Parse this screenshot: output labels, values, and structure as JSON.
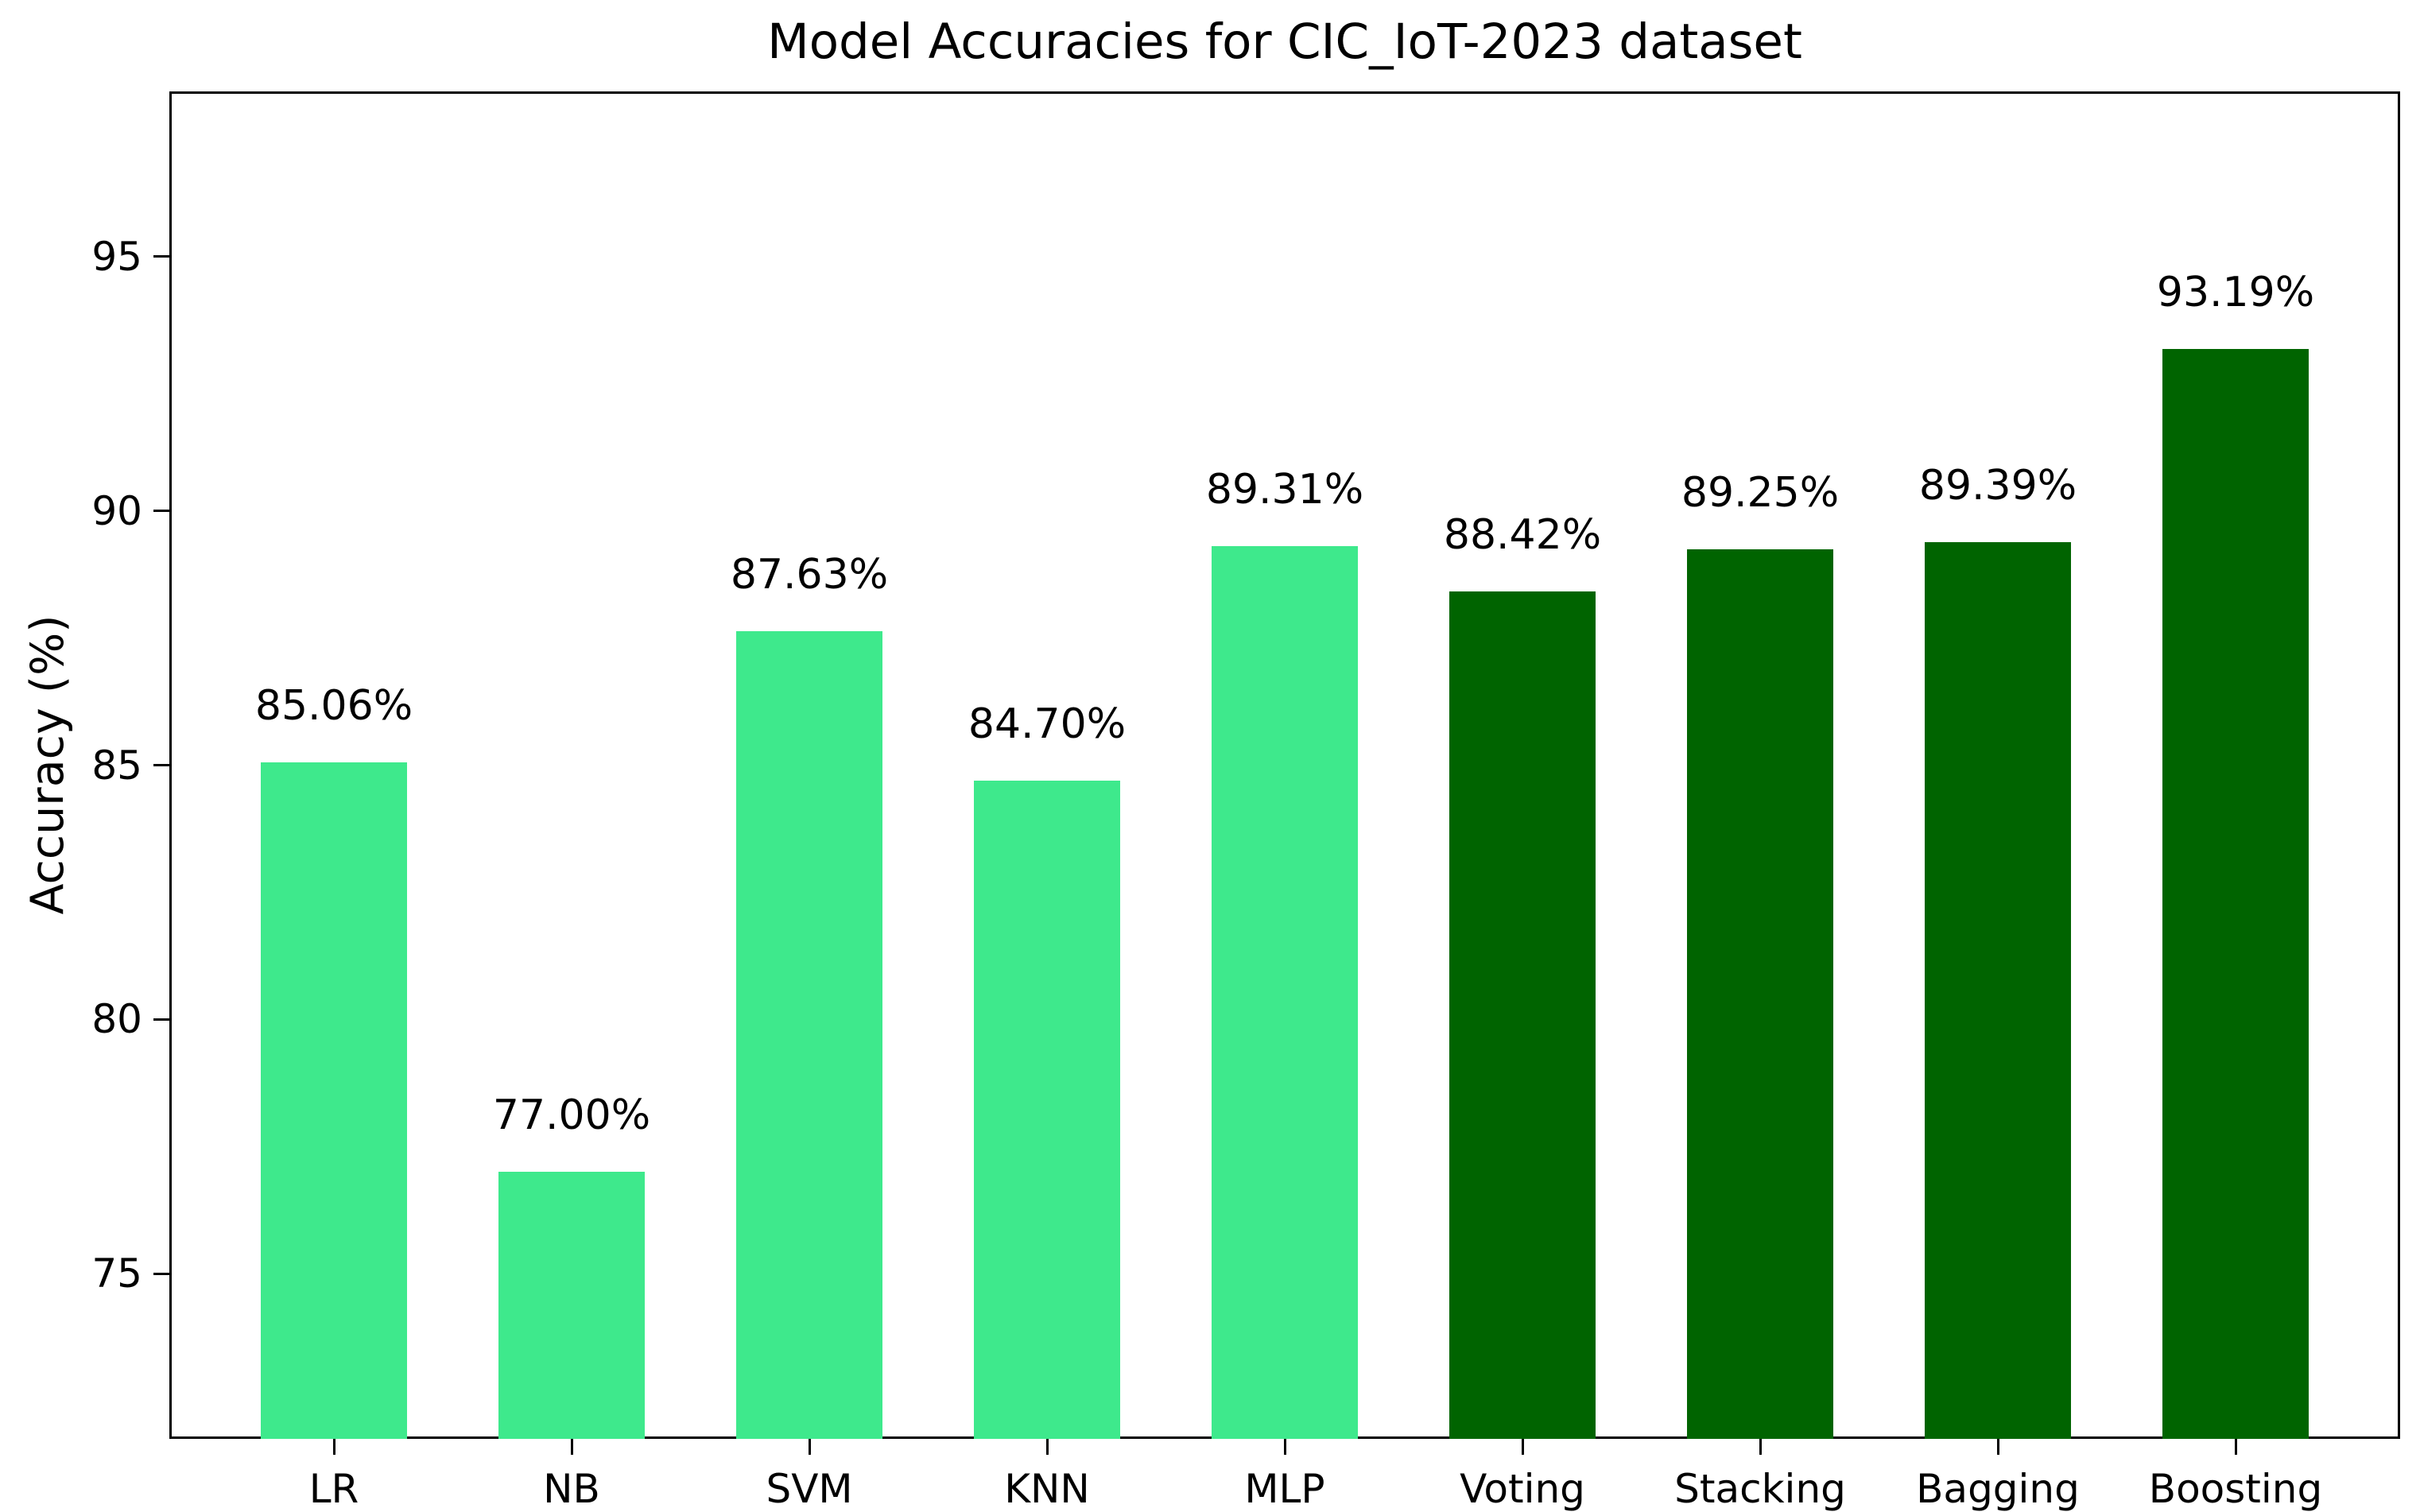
{
  "chart_data": {
    "type": "bar",
    "title": "Model Accuracies for CIC_IoT-2023 dataset",
    "xlabel": "",
    "ylabel": "Accuracy (%)",
    "categories": [
      "LR",
      "NB",
      "SVM",
      "KNN",
      "MLP",
      "Voting",
      "Stacking",
      "Bagging",
      "Boosting"
    ],
    "values": [
      85.06,
      77.0,
      87.63,
      84.7,
      89.31,
      88.42,
      89.25,
      89.39,
      93.19
    ],
    "bar_labels": [
      "85.06%",
      "77.00%",
      "87.63%",
      "84.70%",
      "89.31%",
      "88.42%",
      "89.25%",
      "89.39%",
      "93.19%"
    ],
    "bar_colors": [
      "#3ee98c",
      "#3ee98c",
      "#3ee98c",
      "#3ee98c",
      "#3ee98c",
      "#006400",
      "#006400",
      "#006400",
      "#006400"
    ],
    "yticks": [
      75,
      80,
      85,
      90,
      95
    ],
    "ytick_labels": [
      "75",
      "80",
      "85",
      "90",
      "95"
    ],
    "ylim": [
      71.75,
      98.25
    ],
    "grid": false,
    "legend_position": "none"
  },
  "colors": {
    "light_green": "#3ee98c",
    "dark_green": "#006400",
    "axis": "#000000",
    "background": "#ffffff",
    "text": "#000000"
  }
}
